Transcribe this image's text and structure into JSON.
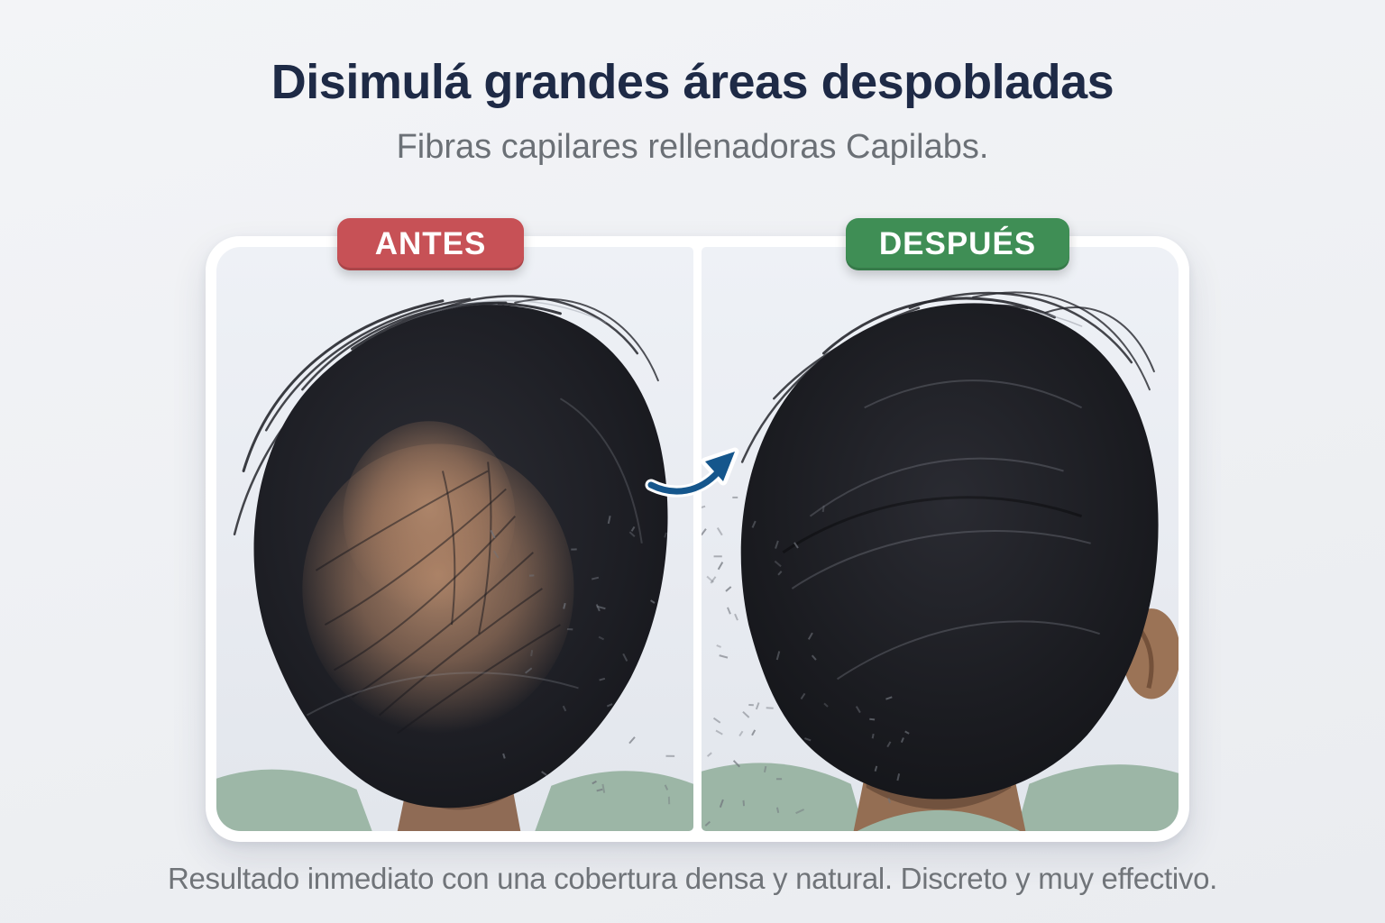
{
  "header": {
    "title": "Disimulá grandes áreas despobladas",
    "subtitle": "Fibras capilares rellenadoras Capilabs."
  },
  "comparison": {
    "before_label": "ANTES",
    "after_label": "DESPUÉS",
    "before_badge_color": "#c75156",
    "after_badge_color": "#3f8e55",
    "arrow_icon": "curved-right-arrow-icon",
    "arrow_color": "#15568c"
  },
  "footer": {
    "caption": "Resultado inmediato con una cobertura densa y natural. Discreto y muy effectivo."
  },
  "colors": {
    "background": "#eef0f3",
    "title_text": "#1e2a46",
    "subtitle_text": "#6b7076",
    "caption_text": "#707479",
    "card_background": "#ffffff",
    "photo_background": "#e9ecf2",
    "hair": "#1b1c21",
    "scalp_skin": "#ad males: 8266",
    "shirt_green": "#9cb6a6"
  }
}
